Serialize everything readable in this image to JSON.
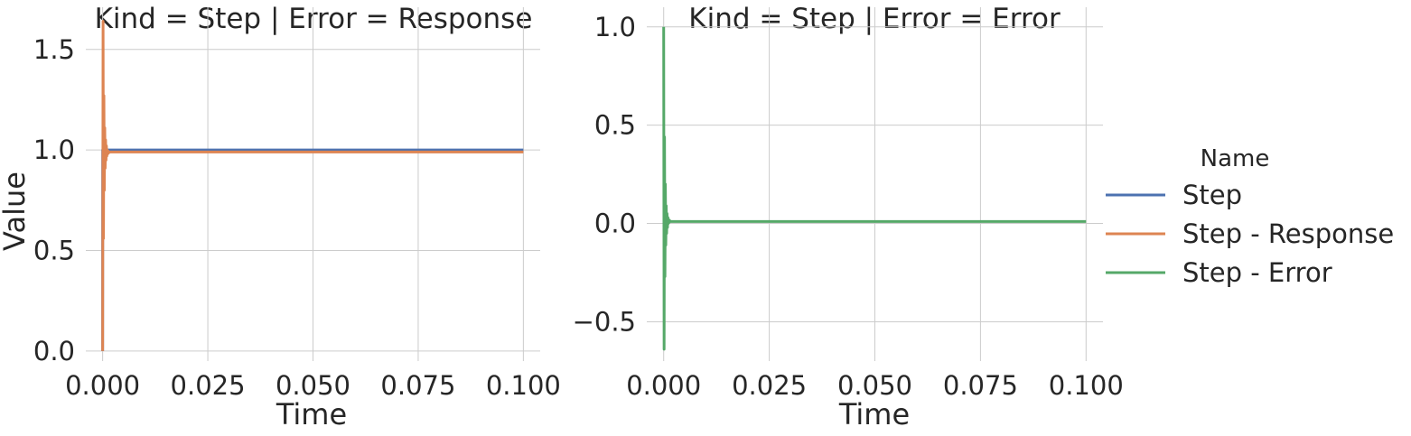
{
  "chart_data": [
    {
      "type": "line",
      "title": "Kind = Step | Error = Response",
      "xlabel": "Time",
      "ylabel": "Value",
      "xlim": [
        -0.004,
        0.104
      ],
      "ylim": [
        -0.05,
        1.71
      ],
      "xticks": [
        0.0,
        0.025,
        0.05,
        0.075,
        0.1
      ],
      "xtick_labels": [
        "0.000",
        "0.025",
        "0.050",
        "0.075",
        "0.100"
      ],
      "yticks": [
        0.0,
        0.5,
        1.0,
        1.5
      ],
      "ytick_labels": [
        "0.0",
        "0.5",
        "1.0",
        "1.5"
      ],
      "grid": true,
      "series": [
        {
          "name": "Step",
          "color": "#4c72b0",
          "x": [
            0.0,
            1e-05,
            0.1
          ],
          "y": [
            0.0,
            1.0,
            1.0
          ]
        },
        {
          "name": "Step - Response",
          "color": "#dd8452",
          "x": [
            0.0,
            0.0001,
            0.0002,
            0.0003,
            0.0004,
            0.0005,
            0.0006,
            0.0007,
            0.0008,
            0.0009,
            0.001,
            0.0011,
            0.0012,
            0.0013,
            0.0014,
            0.0016,
            0.002,
            0.1
          ],
          "y": [
            0.0,
            1.64,
            0.56,
            1.27,
            0.8,
            1.11,
            0.91,
            1.05,
            0.95,
            1.02,
            0.97,
            1.0,
            0.98,
            0.995,
            0.985,
            0.99,
            0.99,
            0.99
          ]
        }
      ]
    },
    {
      "type": "line",
      "title": "Kind = Step | Error = Error",
      "xlabel": "Time",
      "ylabel": "",
      "xlim": [
        -0.004,
        0.104
      ],
      "ylim": [
        -0.7,
        1.1
      ],
      "xticks": [
        0.0,
        0.025,
        0.05,
        0.075,
        0.1
      ],
      "xtick_labels": [
        "0.000",
        "0.025",
        "0.050",
        "0.075",
        "0.100"
      ],
      "yticks": [
        -0.5,
        0.0,
        0.5,
        1.0
      ],
      "ytick_labels": [
        "−0.5",
        "0.0",
        "0.5",
        "1.0"
      ],
      "grid": true,
      "series": [
        {
          "name": "Step - Error",
          "color": "#55a868",
          "x": [
            0.0,
            0.0001,
            0.0002,
            0.0003,
            0.0004,
            0.0005,
            0.0006,
            0.0007,
            0.0008,
            0.0009,
            0.001,
            0.0011,
            0.0012,
            0.0013,
            0.0014,
            0.0016,
            0.002,
            0.1
          ],
          "y": [
            1.0,
            -0.64,
            0.44,
            -0.27,
            0.2,
            -0.11,
            0.09,
            -0.05,
            0.05,
            -0.02,
            0.03,
            0.0,
            0.02,
            0.005,
            0.015,
            0.01,
            0.01,
            0.01
          ]
        }
      ]
    }
  ],
  "legend": {
    "title": "Name",
    "placement": "right",
    "entries": [
      {
        "label": "Step",
        "color": "#4c72b0"
      },
      {
        "label": "Step - Response",
        "color": "#dd8452"
      },
      {
        "label": "Step - Error",
        "color": "#55a868"
      }
    ]
  }
}
